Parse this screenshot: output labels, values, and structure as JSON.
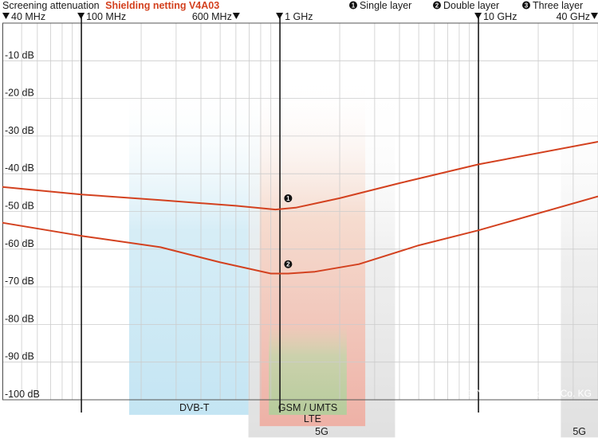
{
  "header": {
    "title_prefix": "Screening attenuation",
    "title_product": "Shielding netting V4A03",
    "legend": [
      {
        "num": "1",
        "label": "Single layer"
      },
      {
        "num": "2",
        "label": "Double layer"
      },
      {
        "num": "3",
        "label": "Three layer"
      }
    ],
    "freq_labels": [
      {
        "f": 40,
        "text": "40 MHz",
        "marker": "left"
      },
      {
        "f": 100,
        "text": "100 MHz",
        "marker": "left"
      },
      {
        "f": 600,
        "text": "600 MHz",
        "marker": "right"
      },
      {
        "f": 1000,
        "text": "1 GHz",
        "marker": "left"
      },
      {
        "f": 10000,
        "text": "10 GHz",
        "marker": "left"
      },
      {
        "f": 40000,
        "text": "40 GHz",
        "marker": "right"
      }
    ]
  },
  "copyright": "© YSHIELD GmbH & Co. KG",
  "colors": {
    "accent": "#d3411f",
    "dvbt": "#cfeaf5",
    "gsm": "#c8d8b4",
    "lte": "#f2c2b6",
    "g5": "#e2e2e2",
    "grid": "#cccccc",
    "major_line": "#1a1a1a"
  },
  "chart_data": {
    "type": "line",
    "x_scale": "log",
    "xlim": [
      40,
      40000
    ],
    "ylim": [
      -100,
      0
    ],
    "y_ticks": [
      {
        "v": -10,
        "label": "-10 dB"
      },
      {
        "v": -20,
        "label": "-20 dB"
      },
      {
        "v": -30,
        "label": "-30 dB"
      },
      {
        "v": -40,
        "label": "-40 dB"
      },
      {
        "v": -50,
        "label": "-50 dB"
      },
      {
        "v": -60,
        "label": "-60 dB"
      },
      {
        "v": -70,
        "label": "-70 dB"
      },
      {
        "v": -80,
        "label": "-80 dB"
      },
      {
        "v": -90,
        "label": "-90 dB"
      },
      {
        "v": -100,
        "label": "-100 dB"
      }
    ],
    "major_lines_x": [
      100,
      1000,
      10000
    ],
    "series": [
      {
        "marker": "1",
        "marker_at": [
          1100,
          -46.5
        ],
        "points": [
          [
            40,
            -43.5
          ],
          [
            100,
            -45.5
          ],
          [
            250,
            -47
          ],
          [
            600,
            -48.5
          ],
          [
            950,
            -49.5
          ],
          [
            1200,
            -49
          ],
          [
            2000,
            -46.5
          ],
          [
            4000,
            -42.5
          ],
          [
            10000,
            -37.5
          ],
          [
            40000,
            -31.5
          ]
        ]
      },
      {
        "marker": "2",
        "marker_at": [
          1100,
          -64
        ],
        "points": [
          [
            40,
            -53
          ],
          [
            100,
            -56.5
          ],
          [
            250,
            -59.5
          ],
          [
            500,
            -63.5
          ],
          [
            900,
            -66.5
          ],
          [
            1100,
            -66.5
          ],
          [
            1500,
            -66
          ],
          [
            2500,
            -64
          ],
          [
            5000,
            -59
          ],
          [
            10000,
            -55
          ],
          [
            40000,
            -46
          ]
        ]
      }
    ],
    "bands": [
      {
        "label": "DVB-T",
        "from": 174,
        "to": 790,
        "y_top": -15,
        "y_bottom": -104,
        "color_key": "dvbt",
        "label_row": 1
      },
      {
        "label": "5G",
        "from": 694,
        "to": 3800,
        "y_top": -15,
        "y_bottom": -110,
        "color_key": "g5",
        "label_row": 3
      },
      {
        "label": "LTE",
        "from": 791,
        "to": 2690,
        "y_top": -15,
        "y_bottom": -107,
        "color_key": "lte",
        "label_row": 2
      },
      {
        "label": "GSM / UMTS",
        "from": 880,
        "to": 2170,
        "y_top": -80,
        "y_bottom": -104,
        "color_key": "gsm",
        "label_row": 1
      },
      {
        "label": "5G",
        "from": 26000,
        "to": 40000,
        "y_top": -15,
        "y_bottom": -110,
        "color_key": "g5",
        "label_row": 3
      }
    ]
  }
}
